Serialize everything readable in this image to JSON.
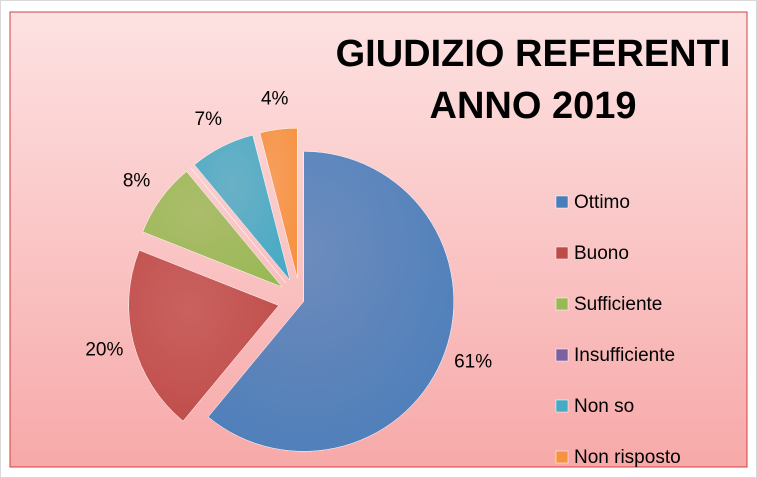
{
  "chart_data": {
    "type": "pie",
    "title": "GIUDIZIO REFERENTI ANNO 2019",
    "categories": [
      "Ottimo",
      "Buono",
      "Sufficiente",
      "Insufficiente",
      "Non so",
      "Non risposto"
    ],
    "values": [
      61,
      20,
      8,
      0,
      7,
      4
    ],
    "value_labels": [
      "61%",
      "20%",
      "8%",
      null,
      "7%",
      "4%"
    ],
    "colors": [
      "#4a7ebb",
      "#be4b48",
      "#98b954",
      "#7d60a0",
      "#46aac5",
      "#f69240"
    ],
    "legend": "right"
  }
}
